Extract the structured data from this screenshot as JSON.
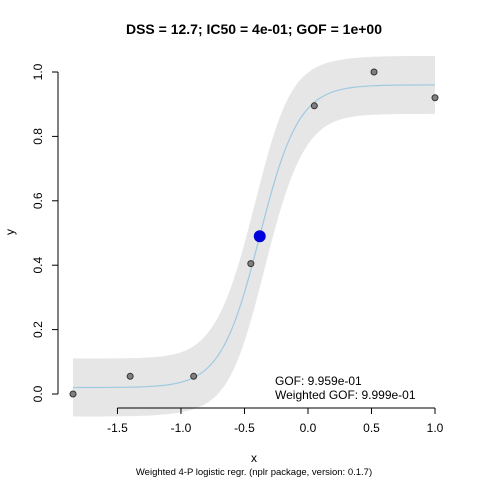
{
  "chart_data": {
    "type": "scatter",
    "title": "DSS = 12.7; IC50 = 4e-01; GOF = 1e+00",
    "xlabel": "x",
    "ylabel": "y",
    "footer": "Weighted 4-P logistic regr. (nplr package, version: 0.1.7)",
    "xlim": [
      -1.85,
      1.0
    ],
    "ylim": [
      0.0,
      1.0
    ],
    "x_ticks": [
      -1.5,
      -1.0,
      -0.5,
      0.0,
      0.5,
      1.0
    ],
    "x_tick_labels": [
      "-1.5",
      "-1.0",
      "-0.5",
      "0.0",
      "0.5",
      "1.0"
    ],
    "y_ticks": [
      0.0,
      0.2,
      0.4,
      0.6,
      0.8,
      1.0
    ],
    "y_tick_labels": [
      "0.0",
      "0.2",
      "0.4",
      "0.6",
      "0.8",
      "1.0"
    ],
    "grid": false,
    "points": {
      "name": "observations",
      "x": [
        -1.85,
        -1.4,
        -0.9,
        -0.45,
        0.05,
        0.52,
        1.0
      ],
      "y": [
        0.0,
        0.055,
        0.055,
        0.405,
        0.895,
        1.0,
        0.92
      ]
    },
    "fit": {
      "name": "fitted curve",
      "bottom": 0.02,
      "top": 0.96,
      "xmid": -0.38,
      "slope": 6.5,
      "band_halfwidth_tail": 0.09,
      "band_halfwidth_mid": 0.16
    },
    "ic50_point": {
      "x": -0.38,
      "y": 0.49
    },
    "annotations": {
      "gof": "GOF: 9.959e-01",
      "weighted_gof": "Weighted GOF: 9.999e-01"
    },
    "colors": {
      "band": "#e6e6e6",
      "curve": "#9ecae1",
      "point_fill": "#808080",
      "point_stroke": "#333333",
      "ic50": "#0000dd"
    }
  }
}
